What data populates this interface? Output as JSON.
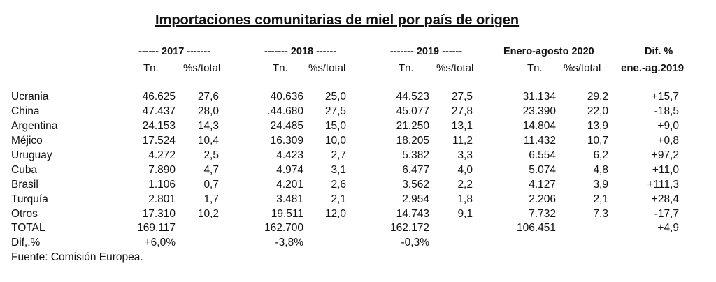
{
  "title": "Importaciones comunitarias de miel por país de origen",
  "headers": {
    "y2017": "------ 2017 -------",
    "y2018": "------- 2018 ------",
    "y2019": "------- 2019 ------",
    "period2020": "Enero-agosto 2020",
    "dif": "Dif. %",
    "tn": "Tn.",
    "pct": "%s/total",
    "dif_sub": "ene.-ag.2019"
  },
  "rows": [
    {
      "country": "Ucrania",
      "t2017": "46.625",
      "p2017": "27,6",
      "t2018": "40.636",
      "p2018": "25,0",
      "t2019": "44.523",
      "p2019": "27,5",
      "t2020": "31.134",
      "p2020": "29,2",
      "dif": "+15,7"
    },
    {
      "country": "China",
      "t2017": "47.437",
      "p2017": "28,0",
      "t2018": ".44.680",
      "p2018": "27,5",
      "t2019": "45.077",
      "p2019": "27,8",
      "t2020": "23.390",
      "p2020": "22,0",
      "dif": "-18,5"
    },
    {
      "country": "Argentina",
      "t2017": "24.153",
      "p2017": "14,3",
      "t2018": "24.485",
      "p2018": "15,0",
      "t2019": "21.250",
      "p2019": "13,1",
      "t2020": "14.804",
      "p2020": "13,9",
      "dif": "+9,0"
    },
    {
      "country": "Méjico",
      "t2017": "17.524",
      "p2017": "10,4",
      "t2018": "16.309",
      "p2018": "10,0",
      "t2019": "18.205",
      "p2019": "11,2",
      "t2020": "11.432",
      "p2020": "10,7",
      "dif": "+0,8"
    },
    {
      "country": "Uruguay",
      "t2017": "4.272",
      "p2017": "2,5",
      "t2018": "4.423",
      "p2018": "2,7",
      "t2019": "5.382",
      "p2019": "3,3",
      "t2020": "6.554",
      "p2020": "6,2",
      "dif": "+97,2"
    },
    {
      "country": "Cuba",
      "t2017": "7.890",
      "p2017": "4,7",
      "t2018": "4.974",
      "p2018": "3,1",
      "t2019": "6.477",
      "p2019": "4,0",
      "t2020": "5.074",
      "p2020": "4,8",
      "dif": "+11,0"
    },
    {
      "country": "Brasil",
      "t2017": "1.106",
      "p2017": "0,7",
      "t2018": "4.201",
      "p2018": "2,6",
      "t2019": "3.562",
      "p2019": "2,2",
      "t2020": "4.127",
      "p2020": "3,9",
      "dif": "+111,3"
    },
    {
      "country": "Turquía",
      "t2017": "2.801",
      "p2017": "1,7",
      "t2018": "3.481",
      "p2018": "2,1",
      "t2019": "2.954",
      "p2019": "1,8",
      "t2020": "2.206",
      "p2020": "2,1",
      "dif": "+28,4"
    },
    {
      "country": "Otros",
      "t2017": "17.310",
      "p2017": "10,2",
      "t2018": "19.511",
      "p2018": "12,0",
      "t2019": "14.743",
      "p2019": "9,1",
      "t2020": "7.732",
      "p2020": "7,3",
      "dif": "-17,7"
    },
    {
      "country": "TOTAL",
      "t2017": "169.117",
      "p2017": "",
      "t2018": "162.700",
      "p2018": "",
      "t2019": "162.172",
      "p2019": "",
      "t2020": "106.451",
      "p2020": "",
      "dif": "+4,9"
    },
    {
      "country": "Dif,.%",
      "t2017": "+6,0%",
      "p2017": "",
      "t2018": "-3,8%",
      "p2018": "",
      "t2019": "-0,3%",
      "p2019": "",
      "t2020": "",
      "p2020": "",
      "dif": ""
    }
  ],
  "source": "Fuente: Comisión Europea."
}
